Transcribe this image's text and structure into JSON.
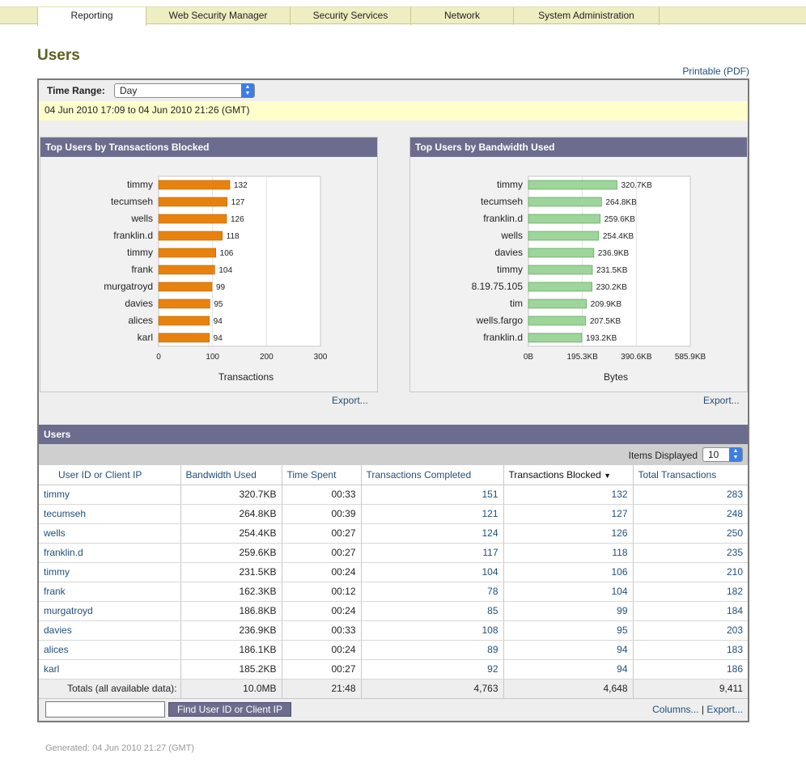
{
  "nav": {
    "tabs": [
      {
        "label": "Reporting",
        "active": true
      },
      {
        "label": "Web Security Manager",
        "active": false
      },
      {
        "label": "Security Services",
        "active": false
      },
      {
        "label": "Network",
        "active": false
      },
      {
        "label": "System Administration",
        "active": false
      }
    ]
  },
  "page": {
    "title": "Users",
    "printable_link": "Printable (PDF)"
  },
  "filters": {
    "time_range_label": "Time Range:",
    "time_range_value": "Day",
    "date_range": "04 Jun 2010 17:09 to 04 Jun 2010 21:26 (GMT)"
  },
  "charts": {
    "blocked_title": "Top Users by Transactions Blocked",
    "bandwidth_title": "Top Users by Bandwidth Used",
    "export_label": "Export..."
  },
  "colors": {
    "blocked_bar": "#e8820e",
    "bandwidth_bar": "#9dd59a",
    "header_bg": "#6c6c8e",
    "nav_bg": "#eeeec2",
    "title_color": "#5e6022",
    "link": "#1f4f7a"
  },
  "chart_data": [
    {
      "type": "bar",
      "orientation": "horizontal",
      "categories": [
        "timmy",
        "tecumseh",
        "wells",
        "franklin.d",
        "timmy",
        "frank",
        "murgatroyd",
        "davies",
        "alices",
        "karl"
      ],
      "values": [
        132,
        127,
        126,
        118,
        106,
        104,
        99,
        95,
        94,
        94
      ],
      "value_labels": [
        "132",
        "127",
        "126",
        "118",
        "106",
        "104",
        "99",
        "95",
        "94",
        "94"
      ],
      "xlabel": "Transactions",
      "xlim": [
        0,
        300
      ],
      "xticks": [
        "0",
        "100",
        "200",
        "300"
      ],
      "grid": true
    },
    {
      "type": "bar",
      "orientation": "horizontal",
      "categories": [
        "timmy",
        "tecumseh",
        "franklin.d",
        "wells",
        "davies",
        "timmy",
        "8.19.75.105",
        "tim",
        "wells.fargo",
        "franklin.d"
      ],
      "values": [
        320.7,
        264.8,
        259.6,
        254.4,
        236.9,
        231.5,
        230.2,
        209.9,
        207.5,
        193.2
      ],
      "value_labels": [
        "320.7KB",
        "264.8KB",
        "259.6KB",
        "254.4KB",
        "236.9KB",
        "231.5KB",
        "230.2KB",
        "209.9KB",
        "207.5KB",
        "193.2KB"
      ],
      "xlabel": "Bytes",
      "xlim": [
        0,
        585.9
      ],
      "xticks": [
        "0B",
        "195.3KB",
        "390.6KB",
        "585.9KB"
      ],
      "grid": true
    }
  ],
  "users_table": {
    "title": "Users",
    "items_displayed_label": "Items Displayed",
    "items_displayed_value": "10",
    "columns": [
      "User ID or Client IP",
      "Bandwidth Used",
      "Time Spent",
      "Transactions Completed",
      "Transactions Blocked",
      "Total Transactions"
    ],
    "rows": [
      [
        "timmy",
        "320.7KB",
        "00:33",
        "151",
        "132",
        "283"
      ],
      [
        "tecumseh",
        "264.8KB",
        "00:39",
        "121",
        "127",
        "248"
      ],
      [
        "wells",
        "254.4KB",
        "00:27",
        "124",
        "126",
        "250"
      ],
      [
        "franklin.d",
        "259.6KB",
        "00:27",
        "117",
        "118",
        "235"
      ],
      [
        "timmy",
        "231.5KB",
        "00:24",
        "104",
        "106",
        "210"
      ],
      [
        "frank",
        "162.3KB",
        "00:12",
        "78",
        "104",
        "182"
      ],
      [
        "murgatroyd",
        "186.8KB",
        "00:24",
        "85",
        "99",
        "184"
      ],
      [
        "davies",
        "236.9KB",
        "00:33",
        "108",
        "95",
        "203"
      ],
      [
        "alices",
        "186.1KB",
        "00:24",
        "89",
        "94",
        "183"
      ],
      [
        "karl",
        "185.2KB",
        "00:27",
        "92",
        "94",
        "186"
      ]
    ],
    "totals": [
      "Totals (all available data):",
      "10.0MB",
      "21:48",
      "4,763",
      "4,648",
      "9,411"
    ],
    "find_placeholder": "",
    "find_button": "Find User ID or Client IP",
    "columns_link": "Columns...",
    "separator": "|",
    "export_link": "Export..."
  },
  "footer": {
    "generated": "Generated:  04 Jun 2010 21:27 (GMT)"
  }
}
